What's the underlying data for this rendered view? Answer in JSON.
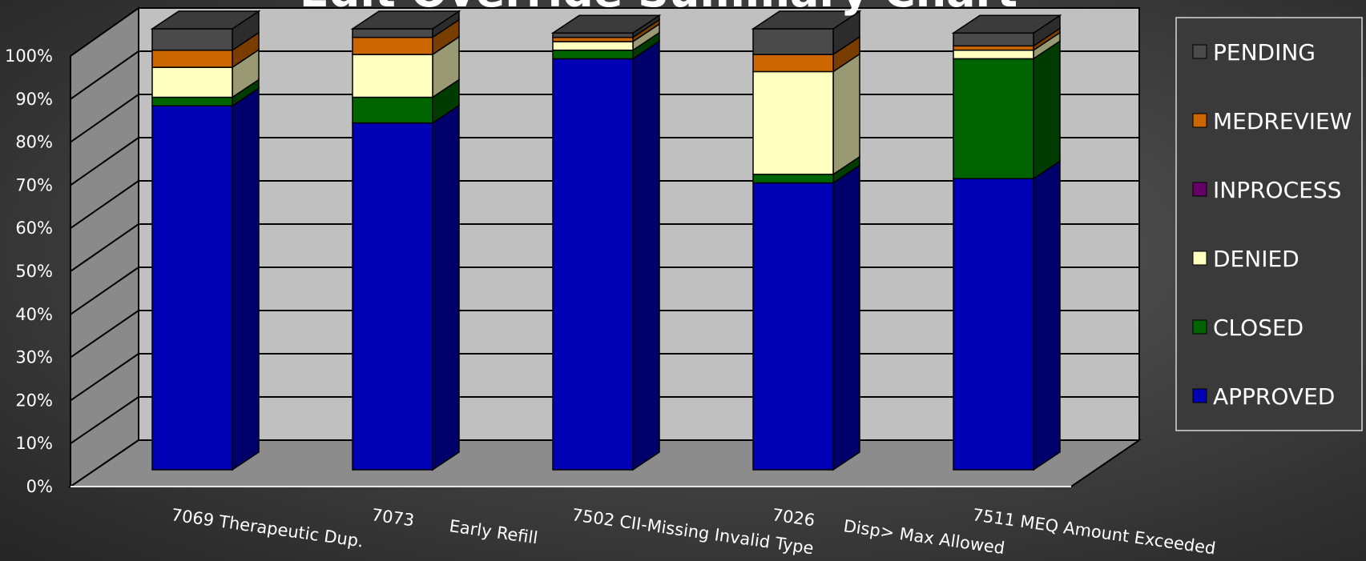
{
  "chart_data": {
    "type": "bar",
    "stacked": true,
    "percent": true,
    "three_d": true,
    "title": "Edit Override Summary Chart",
    "categories": [
      [
        "7069 Therapeutic Dup."
      ],
      [
        "7073",
        "Early Refill"
      ],
      [
        "7502 CII-Missing Invalid Type"
      ],
      [
        "7026",
        "Disp> Max Allowed"
      ],
      [
        "7511 MEQ Amount Exceeded"
      ]
    ],
    "series": [
      {
        "name": "APPROVED",
        "color": "#0000b4",
        "values": [
          85,
          81,
          96,
          67,
          68
        ]
      },
      {
        "name": "CLOSED",
        "color": "#006400",
        "values": [
          2,
          6,
          2,
          2,
          28
        ]
      },
      {
        "name": "DENIED",
        "color": "#ffffc0",
        "values": [
          7,
          10,
          2,
          24,
          2
        ]
      },
      {
        "name": "INPROCESS",
        "color": "#660066",
        "values": [
          0,
          0,
          0,
          0,
          0
        ]
      },
      {
        "name": "MEDREVIEW",
        "color": "#cc6600",
        "values": [
          4,
          4,
          1,
          4,
          1
        ]
      },
      {
        "name": "PENDING",
        "color": "#4a4a4a",
        "values": [
          5,
          2,
          1,
          6,
          3
        ]
      }
    ],
    "legend_order": [
      "PENDING",
      "MEDREVIEW",
      "INPROCESS",
      "DENIED",
      "CLOSED",
      "APPROVED"
    ],
    "ylim": [
      0,
      100
    ],
    "yticks": [
      "0%",
      "10%",
      "20%",
      "30%",
      "40%",
      "50%",
      "60%",
      "70%",
      "80%",
      "90%",
      "100%"
    ],
    "grid": true,
    "legend_position": "right"
  }
}
